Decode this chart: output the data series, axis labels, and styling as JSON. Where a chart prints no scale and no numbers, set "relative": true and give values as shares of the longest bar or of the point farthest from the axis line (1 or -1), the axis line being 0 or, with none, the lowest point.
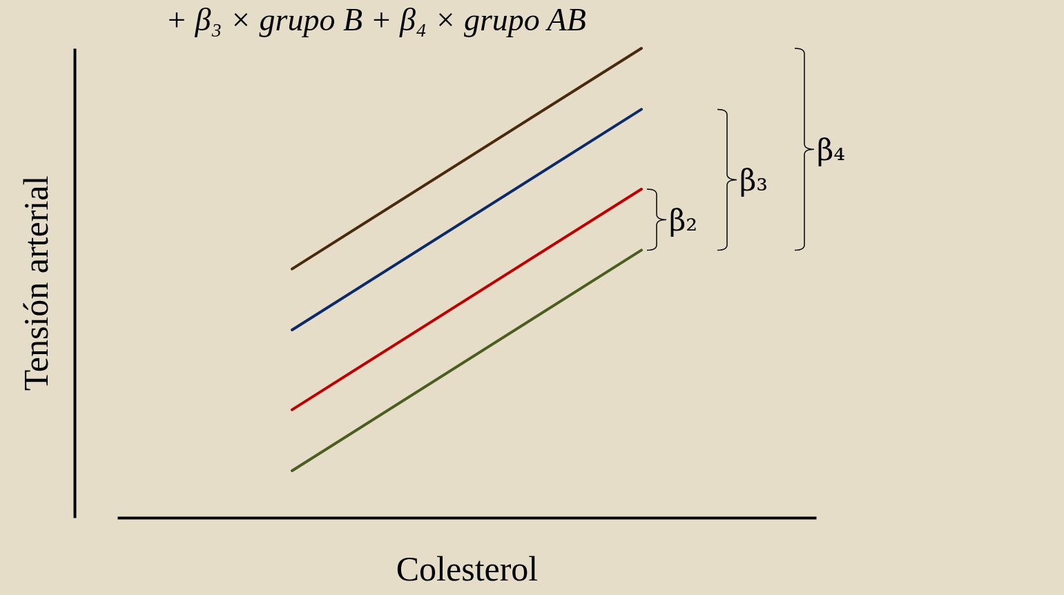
{
  "chart_data": {
    "type": "line",
    "title": "+ β₃ × grupo B + β₄ × grupo AB",
    "xlabel": "Colesterol",
    "ylabel": "Tensión arterial",
    "relative": true,
    "categories": [
      null,
      null
    ],
    "series": [
      {
        "color": "#4a2a0e",
        "values": [
          0.53,
          1
        ]
      },
      {
        "color": "#0a2a6a",
        "values": [
          0.4,
          0.87
        ]
      },
      {
        "color": "#c00000",
        "values": [
          0.23,
          0.7
        ]
      },
      {
        "color": "#4a5e1e",
        "values": [
          0.1,
          0.57
        ]
      }
    ],
    "annotations": [
      "β₂",
      "β₃",
      "β₄"
    ],
    "grid": false,
    "legend": false
  }
}
